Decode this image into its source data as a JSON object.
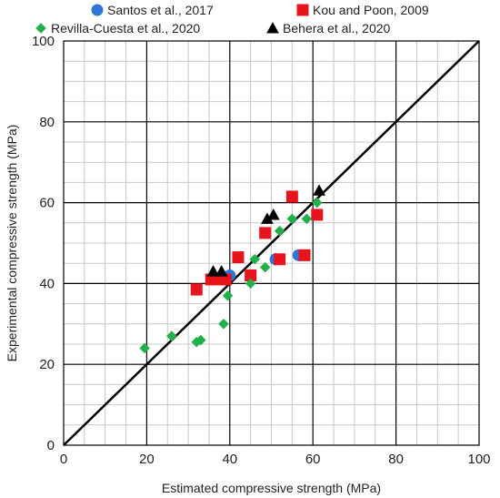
{
  "chart_data": {
    "type": "scatter",
    "xlabel": "Estimated compressive strength (MPa)",
    "ylabel": "Experimental compressive strength (MPa)",
    "xlim": [
      0,
      100
    ],
    "ylim": [
      0,
      100
    ],
    "xticks": [
      "0",
      "20",
      "40",
      "60",
      "80",
      "100"
    ],
    "yticks": [
      "0",
      "20",
      "40",
      "60",
      "80",
      "100"
    ],
    "grid": true,
    "minor_grid": true,
    "legend_position": "top",
    "reference_line": {
      "type": "y=x",
      "color": "#000000"
    },
    "series": [
      {
        "name": "Santos et al., 2017",
        "marker": "circle",
        "color": "#2E75D6",
        "points": [
          [
            40,
            42
          ],
          [
            51,
            46
          ],
          [
            56.5,
            47
          ],
          [
            58,
            47
          ]
        ]
      },
      {
        "name": "Kou and Poon, 2009",
        "marker": "square",
        "color": "#E8141C",
        "points": [
          [
            32,
            38.5
          ],
          [
            35.5,
            41
          ],
          [
            37.5,
            41
          ],
          [
            39,
            41
          ],
          [
            42,
            46.5
          ],
          [
            45,
            42
          ],
          [
            48.5,
            52.5
          ],
          [
            52,
            46
          ],
          [
            55,
            61.5
          ],
          [
            58,
            47
          ],
          [
            61,
            57
          ]
        ]
      },
      {
        "name": "Revilla-Cuesta et al., 2020",
        "marker": "diamond",
        "color": "#22B04A",
        "points": [
          [
            19.5,
            24
          ],
          [
            26,
            27
          ],
          [
            32,
            25.5
          ],
          [
            33,
            26
          ],
          [
            38.5,
            30
          ],
          [
            39.5,
            37
          ],
          [
            45,
            40
          ],
          [
            46,
            46
          ],
          [
            48.5,
            44
          ],
          [
            52,
            53
          ],
          [
            55,
            56
          ],
          [
            58.5,
            56
          ],
          [
            61,
            60
          ]
        ]
      },
      {
        "name": "Behera et al., 2020",
        "marker": "triangle",
        "color": "#000000",
        "points": [
          [
            36,
            43
          ],
          [
            38,
            43
          ],
          [
            49,
            56
          ],
          [
            50.5,
            57
          ],
          [
            61.5,
            63
          ]
        ]
      }
    ]
  }
}
